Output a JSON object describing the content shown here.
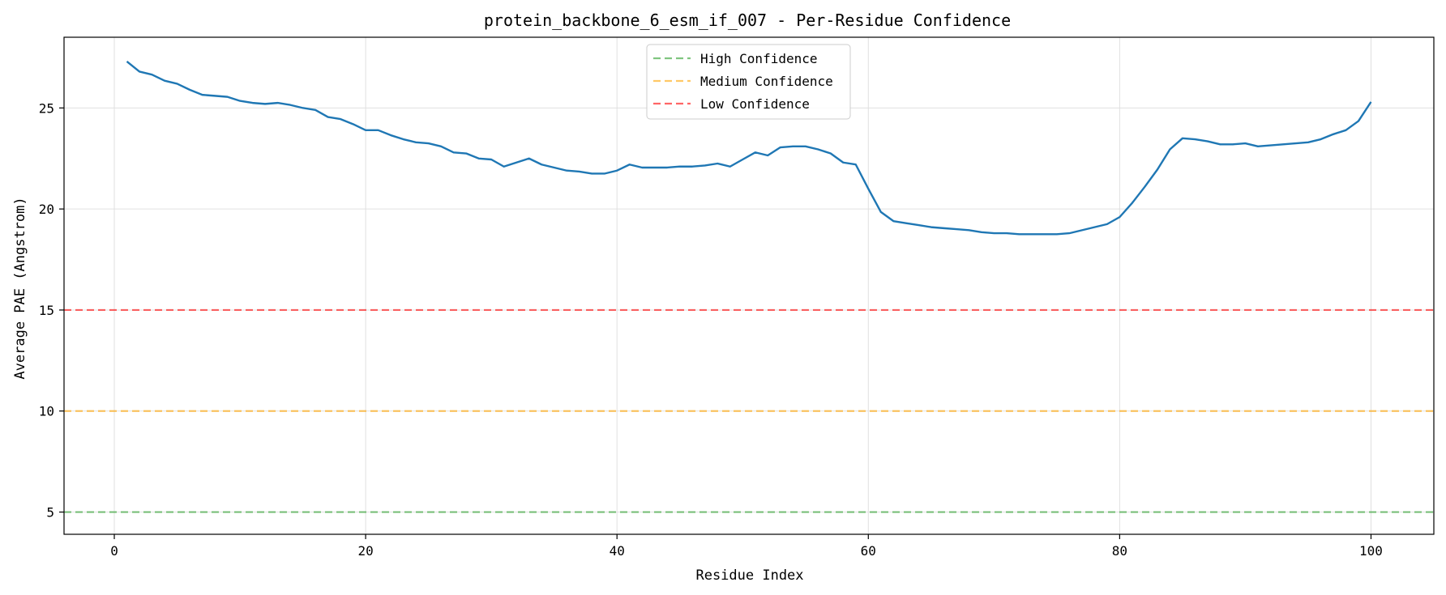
{
  "chart_data": {
    "type": "line",
    "title": "protein_backbone_6_esm_if_007 - Per-Residue Confidence",
    "xlabel": "Residue Index",
    "ylabel": "Average PAE (Angstrom)",
    "xlim": [
      -4,
      105
    ],
    "ylim": [
      3.9,
      28.5
    ],
    "xticks": [
      0,
      20,
      40,
      60,
      80,
      100
    ],
    "yticks": [
      5,
      10,
      15,
      20,
      25
    ],
    "grid": true,
    "legend_position": "top-center",
    "series": [
      {
        "color": "#1f77b4",
        "x": [
          1,
          2,
          3,
          4,
          5,
          6,
          7,
          8,
          9,
          10,
          11,
          12,
          13,
          14,
          15,
          16,
          17,
          18,
          19,
          20,
          21,
          22,
          23,
          24,
          25,
          26,
          27,
          28,
          29,
          30,
          31,
          32,
          33,
          34,
          35,
          36,
          37,
          38,
          39,
          40,
          41,
          42,
          43,
          44,
          45,
          46,
          47,
          48,
          49,
          50,
          51,
          52,
          53,
          54,
          55,
          56,
          57,
          58,
          59,
          60,
          61,
          62,
          63,
          64,
          65,
          66,
          67,
          68,
          69,
          70,
          71,
          72,
          73,
          74,
          75,
          76,
          77,
          78,
          79,
          80,
          81,
          82,
          83,
          84,
          85,
          86,
          87,
          88,
          89,
          90,
          91,
          92,
          93,
          94,
          95,
          96,
          97,
          98,
          99,
          100
        ],
        "y": [
          27.3,
          26.8,
          26.65,
          26.35,
          26.2,
          25.9,
          25.65,
          25.6,
          25.55,
          25.35,
          25.25,
          25.2,
          25.25,
          25.15,
          25.0,
          24.9,
          24.55,
          24.45,
          24.2,
          23.9,
          23.9,
          23.65,
          23.45,
          23.3,
          23.25,
          23.1,
          22.8,
          22.75,
          22.5,
          22.45,
          22.1,
          22.3,
          22.5,
          22.2,
          22.05,
          21.9,
          21.85,
          21.75,
          21.75,
          21.9,
          22.2,
          22.05,
          22.05,
          22.05,
          22.1,
          22.1,
          22.15,
          22.25,
          22.1,
          22.45,
          22.8,
          22.65,
          23.05,
          23.1,
          23.1,
          22.95,
          22.75,
          22.3,
          22.2,
          21.0,
          19.85,
          19.4,
          19.3,
          19.2,
          19.1,
          19.05,
          19.0,
          18.95,
          18.85,
          18.8,
          18.8,
          18.75,
          18.75,
          18.75,
          18.75,
          18.8,
          18.95,
          19.1,
          19.25,
          19.6,
          20.3,
          21.1,
          21.95,
          22.95,
          23.5,
          23.45,
          23.35,
          23.2,
          23.2,
          23.25,
          23.1,
          23.15,
          23.2,
          23.25,
          23.3,
          23.45,
          23.7,
          23.9,
          24.35,
          25.3
        ]
      }
    ],
    "reference_lines": [
      {
        "name": "High Confidence",
        "y": 5,
        "color": "#2ca02c"
      },
      {
        "name": "Medium Confidence",
        "y": 10,
        "color": "#ffa500"
      },
      {
        "name": "Low Confidence",
        "y": 15,
        "color": "#ff0000"
      }
    ]
  }
}
